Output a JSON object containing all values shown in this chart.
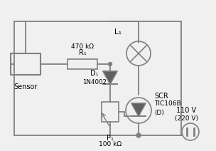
{
  "bg_color": "#f0f0f0",
  "line_color": "#808080",
  "text_color": "#000000",
  "component_color": "#808080",
  "fill_color": "#606060",
  "title": "",
  "labels": {
    "R1": "R₁",
    "R1_val": "470 kΩ",
    "D1": "D₁",
    "D1_val": "1N4002",
    "P1": "P₁",
    "P1_val": "100 kΩ",
    "L1": "L₁",
    "SCR": "SCR",
    "TIC": "TIC106B",
    "D_label": "(D)",
    "voltage": "110 V",
    "voltage2": "(220 V)",
    "sensor": "Sensor"
  }
}
